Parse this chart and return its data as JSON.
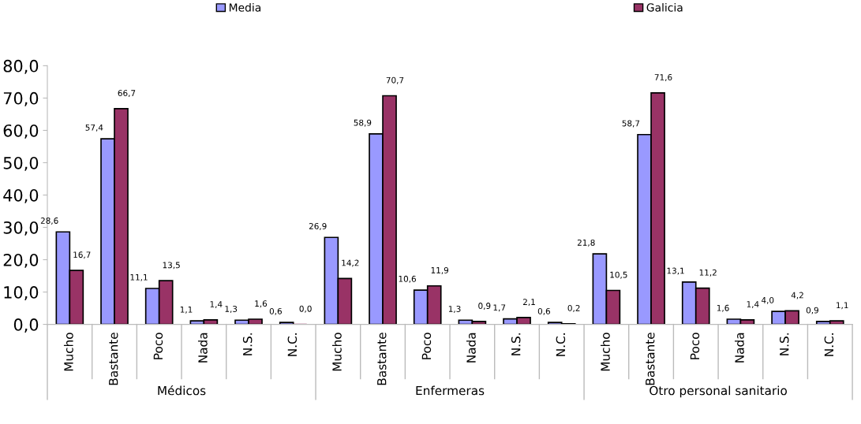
{
  "chart_data": {
    "type": "bar",
    "categories": [
      "Mucho",
      "Bastante",
      "Poco",
      "Nada",
      "N.S.",
      "N.C.",
      "Mucho",
      "Bastante",
      "Poco",
      "Nada",
      "N.S.",
      "N.C.",
      "Mucho",
      "Bastante",
      "Poco",
      "Nada",
      "N.S.",
      "N.C."
    ],
    "series": [
      {
        "name": "Media",
        "color": "#9999ff",
        "values": [
          28.6,
          57.4,
          11.1,
          1.1,
          1.3,
          0.6,
          26.9,
          58.9,
          10.6,
          1.3,
          1.7,
          0.6,
          21.8,
          58.7,
          13.1,
          1.6,
          4.0,
          0.9
        ],
        "value_labels": [
          "28,6",
          "57,4",
          "11,1",
          "1,1",
          "1,3",
          "0,6",
          "26,9",
          "58,9",
          "10,6",
          "1,3",
          "1,7",
          "0,6",
          "21,8",
          "58,7",
          "13,1",
          "1,6",
          "4,0",
          "0,9"
        ]
      },
      {
        "name": "Galicia",
        "color": "#993366",
        "values": [
          16.7,
          66.7,
          13.5,
          1.4,
          1.6,
          0.0,
          14.2,
          70.7,
          11.9,
          0.9,
          2.1,
          0.2,
          10.5,
          71.6,
          11.2,
          1.4,
          4.2,
          1.1
        ],
        "value_labels": [
          "16,7",
          "66,7",
          "13,5",
          "1,4",
          "1,6",
          "0,0",
          "14,2",
          "70,7",
          "11,9",
          "0,9",
          "2,1",
          "0,2",
          "10,5",
          "71,6",
          "11,2",
          "1,4",
          "4,2",
          "1,1"
        ]
      }
    ],
    "annotations": [
      "Médicos",
      "Enfermeras",
      "Otro personal sanitario"
    ],
    "ylim": [
      0,
      80
    ],
    "yticks": [
      {
        "value": 0,
        "label": "0,0"
      },
      {
        "value": 10,
        "label": "10,0"
      },
      {
        "value": 20,
        "label": "20,0"
      },
      {
        "value": 30,
        "label": "30,0"
      },
      {
        "value": 40,
        "label": "40,0"
      },
      {
        "value": 50,
        "label": "50,0"
      },
      {
        "value": 60,
        "label": "60,0"
      },
      {
        "value": 70,
        "label": "70,0"
      },
      {
        "value": 80,
        "label": "80,0"
      }
    ],
    "grid": false,
    "legend": "top"
  }
}
